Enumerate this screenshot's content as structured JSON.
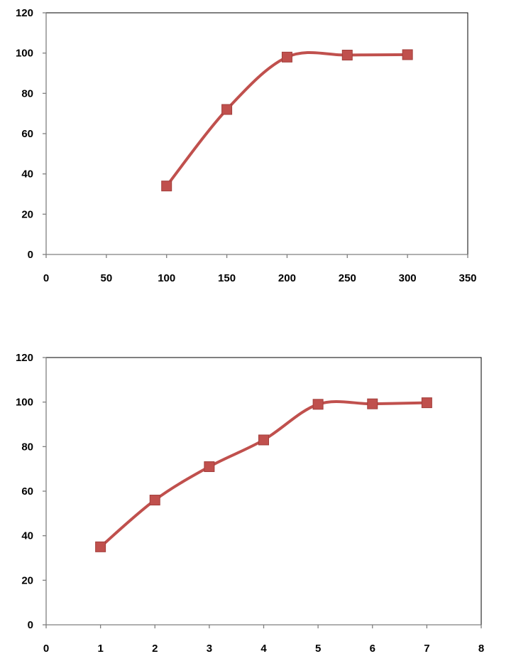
{
  "chart_data": [
    {
      "type": "line",
      "smooth": true,
      "marker": "square",
      "color": "#C0504D",
      "xlim": [
        0,
        350
      ],
      "ylim": [
        0,
        120
      ],
      "x_ticks": [
        0,
        50,
        100,
        150,
        200,
        250,
        300,
        350
      ],
      "y_ticks": [
        0,
        20,
        40,
        60,
        80,
        100,
        120
      ],
      "x_tick_labels": [
        "0",
        "50",
        "100",
        "150",
        "200",
        "250",
        "300",
        "350"
      ],
      "y_tick_labels": [
        "0",
        "20",
        "40",
        "60",
        "80",
        "100",
        "120"
      ],
      "grid": false,
      "series": [
        {
          "x": [
            100,
            150,
            200,
            250,
            300
          ],
          "values": [
            34,
            72,
            98,
            99,
            99.2
          ]
        }
      ]
    },
    {
      "type": "line",
      "smooth": true,
      "marker": "square",
      "color": "#C0504D",
      "xlim": [
        0,
        8
      ],
      "ylim": [
        0,
        120
      ],
      "x_ticks": [
        0,
        1,
        2,
        3,
        4,
        5,
        6,
        7,
        8
      ],
      "y_ticks": [
        0,
        20,
        40,
        60,
        80,
        100,
        120
      ],
      "x_tick_labels": [
        "0",
        "1",
        "2",
        "3",
        "4",
        "5",
        "6",
        "7",
        "8"
      ],
      "y_tick_labels": [
        "0",
        "20",
        "40",
        "60",
        "80",
        "100",
        "120"
      ],
      "grid": false,
      "series": [
        {
          "x": [
            1,
            2,
            3,
            4,
            5,
            6,
            7
          ],
          "values": [
            35,
            56,
            71,
            83,
            99,
            99.2,
            99.7
          ]
        }
      ]
    }
  ]
}
